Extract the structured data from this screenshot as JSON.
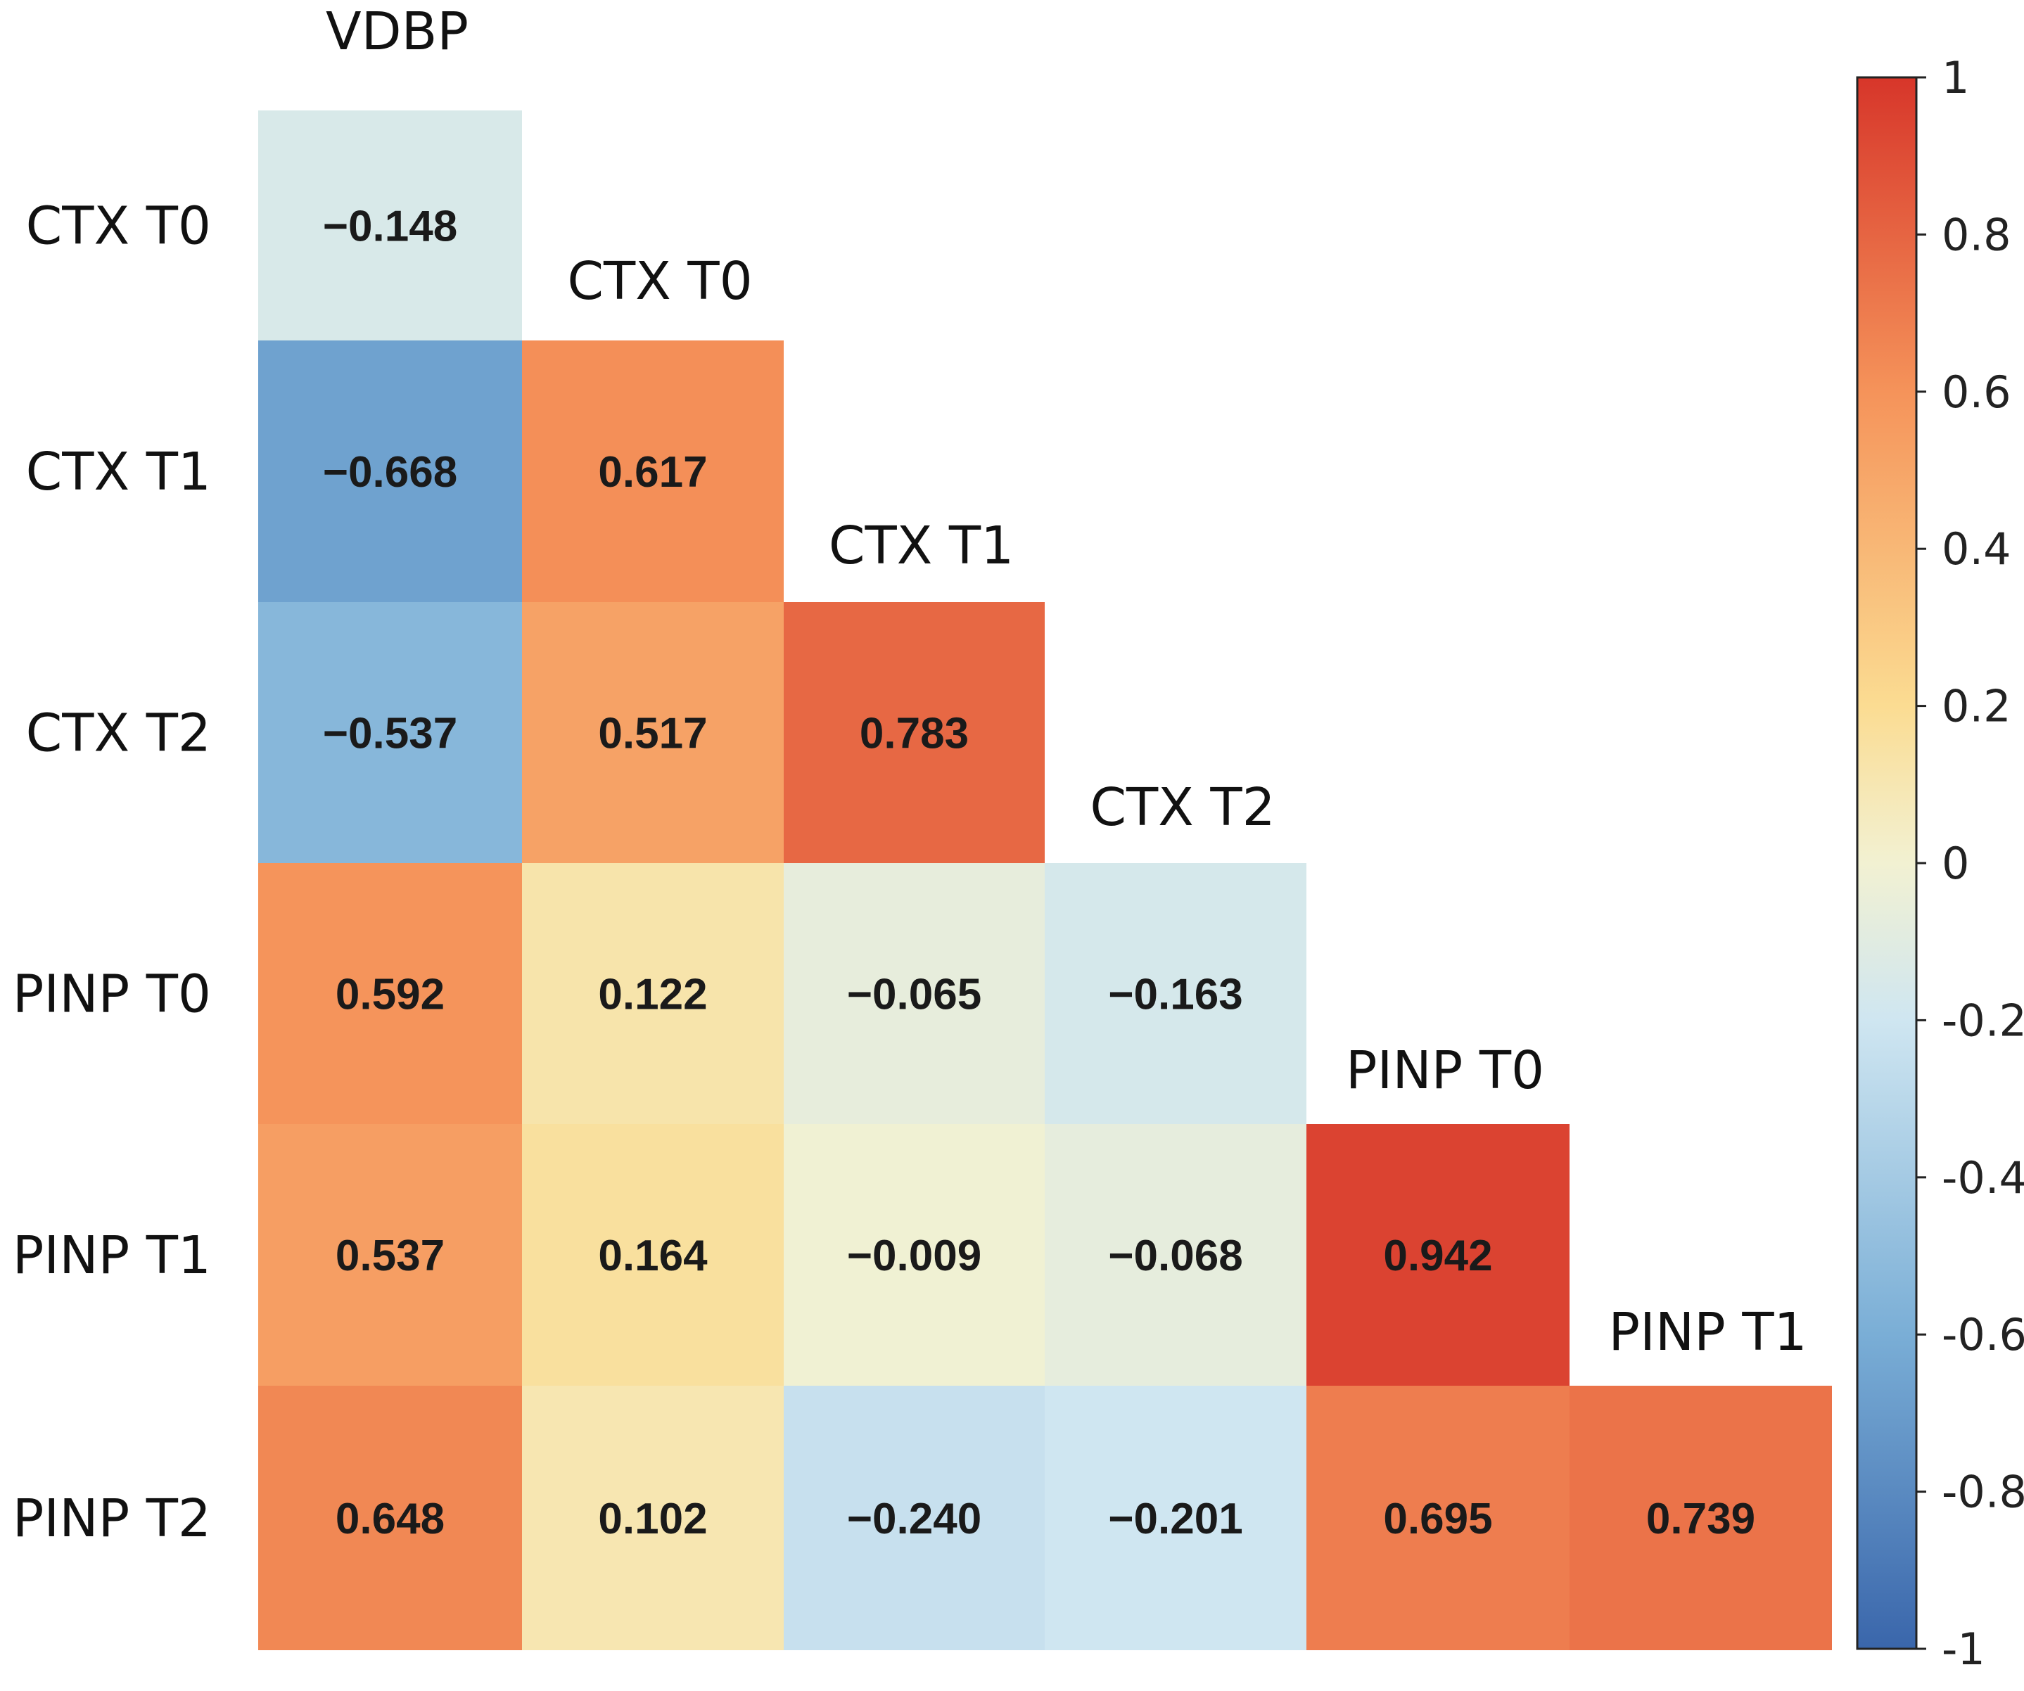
{
  "chart_data": {
    "type": "heatmap",
    "subtype": "lower-triangular correlation matrix",
    "column_labels": [
      "VDBP",
      "CTX T0",
      "CTX T1",
      "CTX T2",
      "PINP T0",
      "PINP T1"
    ],
    "row_labels": [
      "CTX T0",
      "CTX T1",
      "CTX T2",
      "PINP T0",
      "PINP T1",
      "PINP T2"
    ],
    "cells": [
      {
        "row": "CTX T0",
        "col": "VDBP",
        "value": -0.148,
        "label": "−0.148"
      },
      {
        "row": "CTX T1",
        "col": "VDBP",
        "value": -0.668,
        "label": "−0.668"
      },
      {
        "row": "CTX T1",
        "col": "CTX T0",
        "value": 0.617,
        "label": "0.617"
      },
      {
        "row": "CTX T2",
        "col": "VDBP",
        "value": -0.537,
        "label": "−0.537"
      },
      {
        "row": "CTX T2",
        "col": "CTX T0",
        "value": 0.517,
        "label": "0.517"
      },
      {
        "row": "CTX T2",
        "col": "CTX T1",
        "value": 0.783,
        "label": "0.783"
      },
      {
        "row": "PINP T0",
        "col": "VDBP",
        "value": 0.592,
        "label": "0.592"
      },
      {
        "row": "PINP T0",
        "col": "CTX T0",
        "value": 0.122,
        "label": "0.122"
      },
      {
        "row": "PINP T0",
        "col": "CTX T1",
        "value": -0.065,
        "label": "−0.065"
      },
      {
        "row": "PINP T0",
        "col": "CTX T2",
        "value": -0.163,
        "label": "−0.163"
      },
      {
        "row": "PINP T1",
        "col": "VDBP",
        "value": 0.537,
        "label": "0.537"
      },
      {
        "row": "PINP T1",
        "col": "CTX T0",
        "value": 0.164,
        "label": "0.164"
      },
      {
        "row": "PINP T1",
        "col": "CTX T1",
        "value": -0.009,
        "label": "−0.009"
      },
      {
        "row": "PINP T1",
        "col": "CTX T2",
        "value": -0.068,
        "label": "−0.068"
      },
      {
        "row": "PINP T1",
        "col": "PINP T0",
        "value": 0.942,
        "label": "0.942"
      },
      {
        "row": "PINP T2",
        "col": "VDBP",
        "value": 0.648,
        "label": "0.648"
      },
      {
        "row": "PINP T2",
        "col": "CTX T0",
        "value": 0.102,
        "label": "0.102"
      },
      {
        "row": "PINP T2",
        "col": "CTX T1",
        "value": -0.24,
        "label": "−0.240"
      },
      {
        "row": "PINP T2",
        "col": "CTX T2",
        "value": -0.201,
        "label": "−0.201"
      },
      {
        "row": "PINP T2",
        "col": "PINP T0",
        "value": 0.695,
        "label": "0.695"
      },
      {
        "row": "PINP T2",
        "col": "PINP T1",
        "value": 0.739,
        "label": "0.739"
      }
    ],
    "colorbar": {
      "range": [
        -1,
        1
      ],
      "ticks": [
        1,
        0.8,
        0.6,
        0.4,
        0.2,
        0,
        -0.2,
        -0.4,
        -0.6,
        -0.8,
        -1
      ],
      "tick_labels": [
        "1",
        "0.8",
        "0.6",
        "0.4",
        "0.2",
        "0",
        "-0.2",
        "-0.4",
        "-0.6",
        "-0.8",
        "-1"
      ],
      "colors": {
        "-1": "#3a66ab",
        "-0.6": "#7aaed6",
        "-0.2": "#cfe6f1",
        "0": "#f2f1d2",
        "0.2": "#fbdc92",
        "0.6": "#f5935a",
        "1": "#d7362a"
      }
    }
  }
}
